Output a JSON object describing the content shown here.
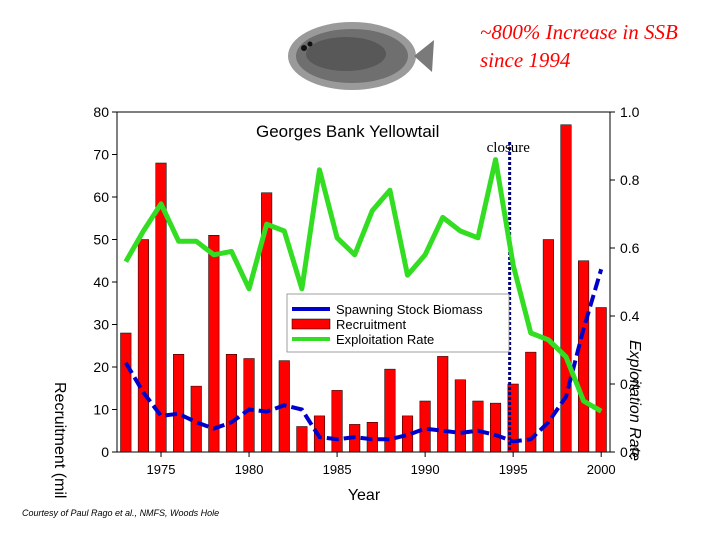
{
  "headline": "~800% Increase in SSB since 1994",
  "credit": "Courtesy of Paul Rago et al., NMFS, Woods Hole",
  "fish_icon": "flounder-icon",
  "colors": {
    "ssb": "#0000cc",
    "recruitment": "#ff0000",
    "exploitation": "#33dd22",
    "closure_line": "#000080"
  },
  "chart_data": {
    "type": "bar",
    "title": "Georges Bank Yellowtail",
    "xlabel": "Year",
    "ylabel": "Recruitment (mil",
    "y2label": "Exploitation Rate",
    "xlim": [
      1973,
      2000
    ],
    "ylim": [
      0,
      80
    ],
    "y2lim": [
      0,
      1.0
    ],
    "x_ticks": [
      1975,
      1980,
      1985,
      1990,
      1995,
      2000
    ],
    "y_ticks": [
      0,
      10,
      20,
      30,
      40,
      50,
      60,
      70,
      80
    ],
    "y2_ticks": [
      "0.0",
      "0.2",
      "0.4",
      "0.6",
      "0.8",
      "1.0"
    ],
    "annotation": {
      "label": "closure",
      "year": 1994.8
    },
    "categories": [
      1973,
      1974,
      1975,
      1976,
      1977,
      1978,
      1979,
      1980,
      1981,
      1982,
      1983,
      1984,
      1985,
      1986,
      1987,
      1988,
      1989,
      1990,
      1991,
      1992,
      1993,
      1994,
      1995,
      1996,
      1997,
      1998,
      1999,
      2000
    ],
    "series": [
      {
        "name": "Spawning Stock Biomass",
        "kind": "line",
        "axis": "left",
        "values": [
          21,
          14,
          8.5,
          9,
          7,
          5.5,
          7,
          10,
          9.5,
          11,
          10,
          3.5,
          3,
          3.5,
          3,
          3,
          4,
          5.5,
          5,
          4.5,
          5,
          4,
          2.5,
          3,
          7,
          13,
          29,
          43
        ]
      },
      {
        "name": "Recruitment",
        "kind": "bar",
        "axis": "left",
        "values": [
          28,
          50,
          68,
          23,
          15.5,
          51,
          23,
          22,
          61,
          21.5,
          6,
          8.5,
          14.5,
          6.5,
          7,
          19.5,
          8.5,
          12,
          22.5,
          17,
          12,
          11.5,
          16,
          23.5,
          50,
          77,
          45,
          34
        ]
      },
      {
        "name": "Exploitation Rate",
        "kind": "line",
        "axis": "right",
        "values": [
          0.56,
          0.65,
          0.73,
          0.62,
          0.62,
          0.58,
          0.59,
          0.48,
          0.67,
          0.65,
          0.48,
          0.83,
          0.63,
          0.58,
          0.71,
          0.77,
          0.52,
          0.58,
          0.69,
          0.65,
          0.63,
          0.86,
          0.55,
          0.35,
          0.33,
          0.28,
          0.15,
          0.12
        ]
      }
    ]
  }
}
